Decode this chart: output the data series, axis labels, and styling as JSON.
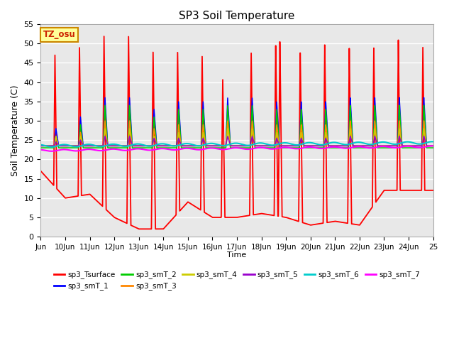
{
  "title": "SP3 Soil Temperature",
  "xlabel": "Time",
  "ylabel": "Soil Temperature (C)",
  "ylim": [
    0,
    55
  ],
  "xlim_days": [
    9,
    25
  ],
  "tz_label": "TZ_osu",
  "series_colors": {
    "sp3_Tsurface": "#ff0000",
    "sp3_smT_1": "#0000ff",
    "sp3_smT_2": "#00cc00",
    "sp3_smT_3": "#ff8800",
    "sp3_smT_4": "#cccc00",
    "sp3_smT_5": "#9900cc",
    "sp3_smT_6": "#00cccc",
    "sp3_smT_7": "#ff00ff"
  },
  "background_color": "#ffffff",
  "plot_bg_color": "#e8e8e8",
  "grid_color": "#ffffff",
  "tick_labels": [
    "Jun",
    "10Jun",
    "11Jun",
    "12Jun",
    "13Jun",
    "14Jun",
    "15Jun",
    "16Jun",
    "17Jun",
    "18Jun",
    "19Jun",
    "20Jun",
    "21Jun",
    "22Jun",
    "23Jun",
    "24Jun",
    "25"
  ],
  "tick_positions": [
    9,
    10,
    11,
    12,
    13,
    14,
    15,
    16,
    17,
    18,
    19,
    20,
    21,
    22,
    23,
    24,
    25
  ],
  "series_order": [
    "sp3_Tsurface",
    "sp3_smT_1",
    "sp3_smT_2",
    "sp3_smT_3",
    "sp3_smT_4",
    "sp3_smT_5",
    "sp3_smT_6",
    "sp3_smT_7"
  ]
}
